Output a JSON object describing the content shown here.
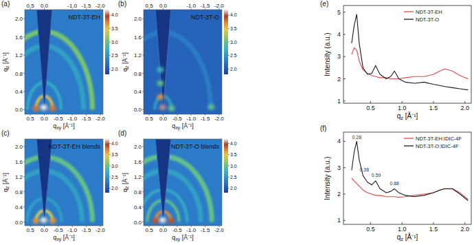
{
  "chart_data": [
    {
      "type": "heatmap",
      "label": "(a)",
      "title": "NDT-3T-EH",
      "xlabel": "qxy [Å⁻¹]",
      "ylabel": "qz [Å⁻¹]",
      "xlim": [
        0.7,
        -2.1
      ],
      "ylim": [
        -0.1,
        2.2
      ],
      "xticks": [
        0.5,
        {
          "value": 0,
          "label": "0.0"
        },
        -0.5,
        {
          "value": -1,
          "label": "-1.0"
        },
        -1.5,
        {
          "value": -2,
          "label": "-2.0"
        }
      ],
      "x2ticks": [
        0.5,
        {
          "value": 0,
          "label": "0.0"
        },
        {
          "value": -1,
          "label": "-1.0"
        },
        -1.5,
        {
          "value": -2,
          "label": "-2.0"
        }
      ],
      "yticks": [
        {
          "value": 0,
          "label": "0.0"
        },
        0.4,
        0.8,
        1.2,
        1.6,
        {
          "value": 2,
          "label": "2.0"
        }
      ],
      "colorbar_lim": [
        1.8,
        4.2
      ],
      "colorbar_ticks": [
        {
          "value": 4,
          "label": "4.0"
        },
        3.5,
        {
          "value": 3,
          "label": "3.0"
        },
        2.5,
        {
          "value": 2,
          "label": "2.0"
        }
      ],
      "background": 2.3,
      "rings": [
        {
          "q": 0.3,
          "intensity": 3.5
        },
        {
          "q": 0.6,
          "intensity": 2.7
        },
        {
          "q": 1.4,
          "intensity": 2.6
        },
        {
          "q": 1.72,
          "intensity": 3.1
        }
      ],
      "spots": [
        {
          "qxy": 0.3,
          "qz": 0.03,
          "intensity": 3.8
        },
        {
          "qxy": -0.3,
          "qz": 0.03,
          "intensity": 3.8
        },
        {
          "qxy": 0.02,
          "qz": 0.05,
          "intensity": 4.2
        }
      ]
    },
    {
      "type": "heatmap",
      "label": "(b)",
      "title": "NDT-3T-O",
      "xlabel": "qxy [Å⁻¹]",
      "ylabel": "qz [Å⁻¹]",
      "xlim": [
        0.7,
        -2.1
      ],
      "ylim": [
        -0.1,
        2.2
      ],
      "xticks": [
        0.5,
        {
          "value": 0,
          "label": "0.0"
        },
        -0.5,
        {
          "value": -1,
          "label": "-1.0"
        },
        -1.5,
        {
          "value": -2,
          "label": "-2.0"
        }
      ],
      "x2ticks": [
        0.5,
        {
          "value": 0,
          "label": "0.0"
        },
        {
          "value": -1,
          "label": "-1.0"
        },
        -1.5,
        {
          "value": -2,
          "label": "-2.0"
        }
      ],
      "yticks": [
        {
          "value": 0,
          "label": "0.0"
        },
        0.4,
        0.8,
        1.2,
        1.6,
        {
          "value": 2,
          "label": "2.0"
        }
      ],
      "colorbar_lim": [
        1.8,
        4.2
      ],
      "colorbar_ticks": [
        {
          "value": 4,
          "label": "4.0"
        },
        3.5,
        {
          "value": 3,
          "label": "3.0"
        },
        2.5,
        {
          "value": 2,
          "label": "2.0"
        }
      ],
      "background": 2.1,
      "rings": [
        {
          "q": 0.3,
          "intensity": 2.6
        },
        {
          "q": 1.7,
          "intensity": 2.3
        }
      ],
      "spots": [
        {
          "qxy": 0.1,
          "qz": 0.28,
          "intensity": 3.7
        },
        {
          "qxy": 0.1,
          "qz": 0.58,
          "intensity": 3.0
        },
        {
          "qxy": 0.1,
          "qz": 0.88,
          "intensity": 2.8
        },
        {
          "qxy": -1.72,
          "qz": 0.06,
          "intensity": 3.0
        },
        {
          "qxy": -0.3,
          "qz": 0.03,
          "intensity": 3.0
        },
        {
          "qxy": 0.02,
          "qz": 0.05,
          "intensity": 4.1
        }
      ]
    },
    {
      "type": "heatmap",
      "label": "(c)",
      "title": "NDT-3T-EH blends",
      "xlabel": "qxy [Å⁻¹]",
      "ylabel": "qz [Å⁻¹]",
      "xlim": [
        0.7,
        -2.1
      ],
      "ylim": [
        -0.1,
        2.2
      ],
      "xticks": [
        0.5,
        {
          "value": 0,
          "label": "0.0"
        },
        -0.5,
        {
          "value": -1,
          "label": "-1.0"
        },
        -1.5,
        {
          "value": -2,
          "label": "-2.0"
        }
      ],
      "yticks": [
        {
          "value": 0,
          "label": "0.0"
        },
        0.4,
        0.8,
        1.2,
        1.6,
        {
          "value": 2,
          "label": "2.0"
        }
      ],
      "colorbar_lim": [
        1.8,
        4.2
      ],
      "colorbar_ticks": [
        {
          "value": 4,
          "label": "4.0"
        },
        3.5,
        {
          "value": 3,
          "label": "3.0"
        },
        2.5,
        {
          "value": 2,
          "label": "2.0"
        }
      ],
      "background": 2.3,
      "rings": [
        {
          "q": 0.3,
          "intensity": 3.4
        },
        {
          "q": 0.62,
          "intensity": 2.6
        },
        {
          "q": 1.35,
          "intensity": 2.6
        },
        {
          "q": 1.72,
          "intensity": 3.0
        }
      ],
      "spots": [
        {
          "qxy": 0.3,
          "qz": 0.03,
          "intensity": 3.7
        },
        {
          "qxy": -0.3,
          "qz": 0.03,
          "intensity": 3.7
        },
        {
          "qxy": 0.02,
          "qz": 0.05,
          "intensity": 4.2
        }
      ]
    },
    {
      "type": "heatmap",
      "label": "(d)",
      "title": "NDT-3T-O blends",
      "xlabel": "qxy [Å⁻¹]",
      "ylabel": "qz [Å⁻¹]",
      "xlim": [
        0.7,
        -2.1
      ],
      "ylim": [
        -0.1,
        2.2
      ],
      "xticks": [
        0.5,
        {
          "value": 0,
          "label": "0.0"
        },
        -0.5,
        {
          "value": -1,
          "label": "-1.0"
        },
        -1.5,
        {
          "value": -2,
          "label": "-2.0"
        }
      ],
      "yticks": [
        {
          "value": 0,
          "label": "0.0"
        },
        0.4,
        0.8,
        1.2,
        1.6,
        {
          "value": 2,
          "label": "2.0"
        }
      ],
      "colorbar_lim": [
        1.8,
        4.2
      ],
      "colorbar_ticks": [
        {
          "value": 4,
          "label": "4.0"
        },
        3.5,
        {
          "value": 3,
          "label": "3.0"
        },
        2.5,
        {
          "value": 2,
          "label": "2.0"
        }
      ],
      "background": 2.3,
      "rings": [
        {
          "q": 0.28,
          "intensity": 3.7
        },
        {
          "q": 0.57,
          "intensity": 3.0
        },
        {
          "q": 0.86,
          "intensity": 2.7
        },
        {
          "q": 1.35,
          "intensity": 2.6
        },
        {
          "q": 1.74,
          "intensity": 3.0
        }
      ],
      "spots": [
        {
          "qxy": 0.28,
          "qz": 0.03,
          "intensity": 3.9
        },
        {
          "qxy": -0.28,
          "qz": 0.03,
          "intensity": 3.9
        },
        {
          "qxy": 0.02,
          "qz": 0.05,
          "intensity": 4.2
        }
      ]
    },
    {
      "type": "line",
      "label": "(e)",
      "xlabel": "qz [Å⁻¹]",
      "ylabel": "Intensity (a.u.)",
      "xlim": [
        0.07,
        2.1
      ],
      "ylim": [
        0.9,
        5.3
      ],
      "xticks": [
        0.5,
        {
          "value": 1,
          "label": "1.0"
        },
        1.5,
        {
          "value": 2,
          "label": "2.0"
        }
      ],
      "yticks": [
        1,
        2,
        3,
        4,
        5
      ],
      "legend": "upper right",
      "x": [
        0.2,
        0.24,
        0.28,
        0.32,
        0.38,
        0.45,
        0.52,
        0.58,
        0.65,
        0.75,
        0.82,
        0.88,
        0.95,
        1.05,
        1.2,
        1.35,
        1.5,
        1.6,
        1.68,
        1.8,
        1.92,
        2.05
      ],
      "series": [
        {
          "name": "NDT-3T-EH",
          "color": "#e8474a",
          "values": [
            3.1,
            3.4,
            3.3,
            2.8,
            2.4,
            2.25,
            2.15,
            2.1,
            2.05,
            2.05,
            2.0,
            2.0,
            2.0,
            2.05,
            2.1,
            2.1,
            2.2,
            2.35,
            2.45,
            2.35,
            2.15,
            2.0
          ]
        },
        {
          "name": "NDT-3T-O",
          "color": "#1a1a1a",
          "values": [
            3.6,
            4.4,
            4.9,
            3.6,
            2.5,
            2.2,
            2.25,
            2.6,
            2.2,
            2.0,
            2.1,
            2.35,
            2.0,
            1.85,
            1.8,
            1.85,
            1.75,
            1.7,
            1.65,
            1.6,
            1.55,
            1.5
          ]
        }
      ]
    },
    {
      "type": "line",
      "label": "(f)",
      "xlabel": "qz [Å⁻¹]",
      "ylabel": "Intensity (a.u.)",
      "xlim": [
        0.07,
        2.1
      ],
      "ylim": [
        0.85,
        4.35
      ],
      "xticks": [
        0.5,
        {
          "value": 1,
          "label": "1.0"
        },
        1.5,
        {
          "value": 2,
          "label": "2.0"
        }
      ],
      "yticks": [
        1,
        2,
        3,
        4
      ],
      "legend": "upper right",
      "x": [
        0.2,
        0.24,
        0.28,
        0.32,
        0.38,
        0.45,
        0.52,
        0.58,
        0.65,
        0.75,
        0.82,
        0.88,
        0.95,
        1.05,
        1.2,
        1.35,
        1.5,
        1.6,
        1.68,
        1.8,
        1.92,
        2.05
      ],
      "series": [
        {
          "name": "NDT-3T-EH:IDIC-4F",
          "color": "#e8474a",
          "values": [
            2.6,
            2.5,
            2.4,
            2.3,
            2.15,
            2.05,
            2.0,
            1.95,
            1.95,
            1.9,
            1.9,
            1.9,
            1.88,
            1.9,
            1.95,
            2.0,
            2.05,
            2.15,
            2.2,
            2.2,
            2.05,
            1.8
          ]
        },
        {
          "name": "NDT-3T-O:IDIC-4F",
          "color": "#1a1a1a",
          "values": [
            2.9,
            3.6,
            4.0,
            3.3,
            2.7,
            2.45,
            2.35,
            2.5,
            2.2,
            2.05,
            2.1,
            2.2,
            2.05,
            1.95,
            1.9,
            1.95,
            2.05,
            2.15,
            2.2,
            2.2,
            2.0,
            1.75
          ]
        }
      ],
      "annotations": [
        {
          "text": "0.28",
          "x": 0.28,
          "y": 4.1
        },
        {
          "text": "0.38",
          "x": 0.4,
          "y": 2.85
        },
        {
          "text": "0.59",
          "x": 0.59,
          "y": 2.65
        },
        {
          "text": "0.88",
          "x": 0.88,
          "y": 2.35
        }
      ]
    }
  ]
}
